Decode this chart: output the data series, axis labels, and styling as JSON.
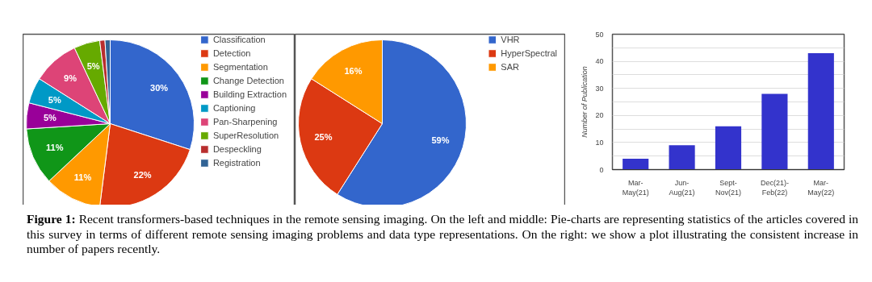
{
  "chart_data": [
    {
      "type": "pie",
      "categories": [
        "Classification",
        "Detection",
        "Segmentation",
        "Change Detection",
        "Building Extraction",
        "Captioning",
        "Pan-Sharpening",
        "SuperResolution",
        "Despeckling",
        "Registration"
      ],
      "values": [
        30,
        22,
        11,
        11,
        5,
        5,
        9,
        5,
        1,
        1
      ],
      "colors": [
        "#3366cc",
        "#dc3912",
        "#ff9900",
        "#109618",
        "#990099",
        "#0099c6",
        "#dd4477",
        "#66aa00",
        "#b82e2e",
        "#316395"
      ],
      "value_labels": [
        "30%",
        "22%",
        "11%",
        "11%",
        "5%",
        "5%",
        "9%",
        "5%",
        null,
        null
      ],
      "legend": "right",
      "annotations": [
        "Figure 1:",
        "Recent transformers-based techniques in the remote sensing imaging. On the left and middle: Pie-charts are representing statistics of the articles covered in this survey in terms of different remote sensing imaging problems and data type representations. On the right: we show a plot illustrating the consistent increase in number of papers recently."
      ]
    },
    {
      "type": "pie",
      "categories": [
        "VHR",
        "HyperSpectral",
        "SAR"
      ],
      "values": [
        59,
        25,
        16
      ],
      "colors": [
        "#3366cc",
        "#dc3912",
        "#ff9900"
      ],
      "value_labels": [
        "59%",
        "25%",
        "16%"
      ],
      "legend": "top right"
    },
    {
      "type": "bar",
      "categories": [
        "Mar-May(21)",
        "Jun-Aug(21)",
        "Sept-Nov(21)",
        "Dec(21)-Feb(22)",
        "Mar-May(22)"
      ],
      "values": [
        4,
        9,
        16,
        28,
        43
      ],
      "color": "#3333cc",
      "ylabel": "Number of Publication",
      "ylim": [
        0,
        50
      ],
      "yticks": [
        0,
        {
          "value": 5,
          "label": null
        },
        10,
        {
          "value": 15,
          "label": null
        },
        20,
        {
          "value": 25,
          "label": null
        },
        30,
        {
          "value": 35,
          "label": null
        },
        40,
        {
          "value": 45,
          "label": null
        },
        50
      ],
      "grid": "y"
    }
  ]
}
